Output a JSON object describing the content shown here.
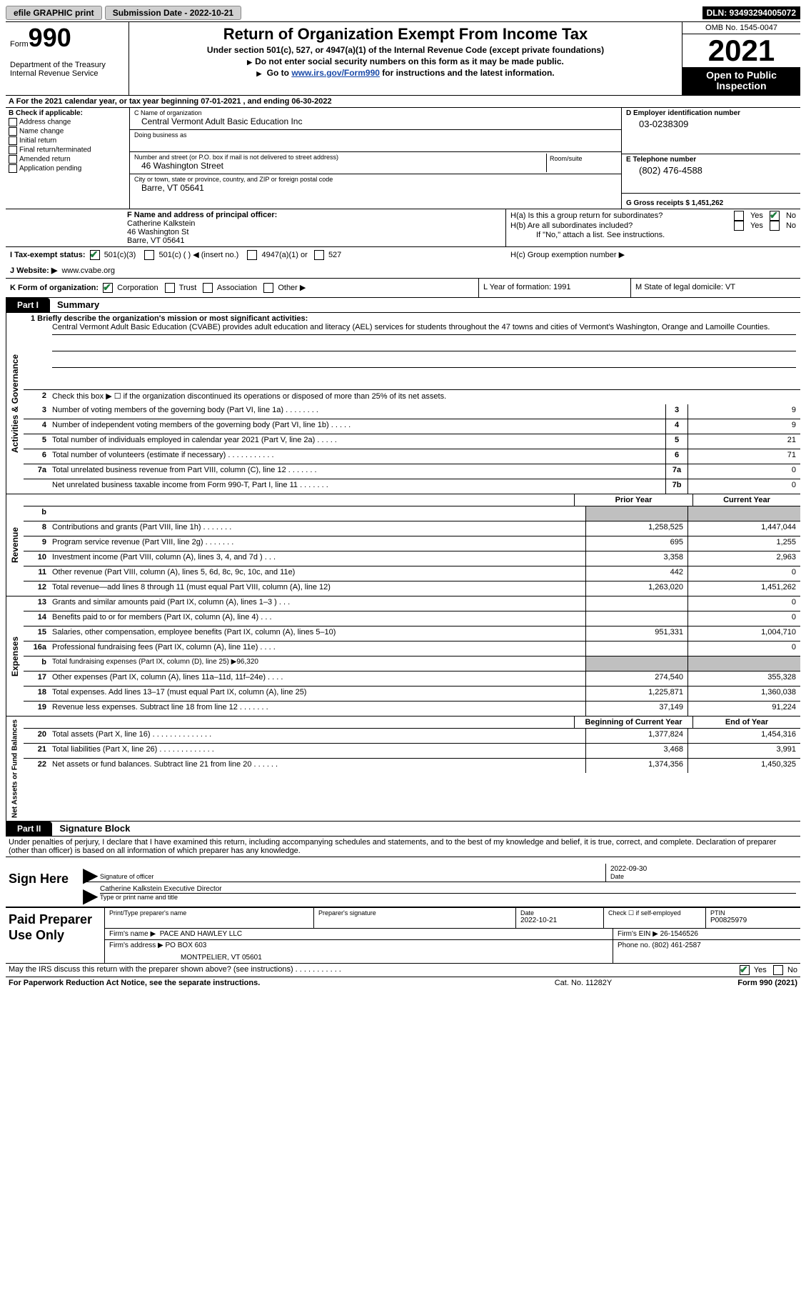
{
  "topbar": {
    "efile": "efile GRAPHIC print",
    "submission": "Submission Date - 2022-10-21",
    "dln": "DLN: 93493294005072"
  },
  "header": {
    "form_word": "Form",
    "form_num": "990",
    "dept": "Department of the Treasury",
    "irs": "Internal Revenue Service",
    "title": "Return of Organization Exempt From Income Tax",
    "sub": "Under section 501(c), 527, or 4947(a)(1) of the Internal Revenue Code (except private foundations)",
    "line1": "Do not enter social security numbers on this form as it may be made public.",
    "line2_pre": "Go to ",
    "line2_link": "www.irs.gov/Form990",
    "line2_post": " for instructions and the latest information.",
    "omb": "OMB No. 1545-0047",
    "year": "2021",
    "otp": "Open to Public Inspection"
  },
  "lineA": "For the 2021 calendar year, or tax year beginning 07-01-2021   , and ending 06-30-2022",
  "B": {
    "title": "B Check if applicable:",
    "items": [
      "Address change",
      "Name change",
      "Initial return",
      "Final return/terminated",
      "Amended return",
      "Application pending"
    ]
  },
  "C": {
    "name_lbl": "C Name of organization",
    "name": "Central Vermont Adult Basic Education Inc",
    "dba_lbl": "Doing business as",
    "street_lbl": "Number and street (or P.O. box if mail is not delivered to street address)",
    "room_lbl": "Room/suite",
    "street": "46 Washington Street",
    "city_lbl": "City or town, state or province, country, and ZIP or foreign postal code",
    "city": "Barre, VT  05641"
  },
  "D": {
    "lbl": "D Employer identification number",
    "val": "03-0238309"
  },
  "E": {
    "lbl": "E Telephone number",
    "val": "(802) 476-4588"
  },
  "G": "G Gross receipts $ 1,451,262",
  "F": {
    "lbl": "F  Name and address of principal officer:",
    "name": "Catherine Kalkstein",
    "street": "46 Washington St",
    "city": "Barre, VT  05641"
  },
  "H": {
    "a": "H(a)  Is this a group return for subordinates?",
    "b": "H(b)  Are all subordinates included?",
    "b_note": "If \"No,\" attach a list. See instructions.",
    "c": "H(c)  Group exemption number ▶",
    "yes": "Yes",
    "no": "No"
  },
  "I": {
    "lbl": "I   Tax-exempt status:",
    "opts": [
      "501(c)(3)",
      "501(c) (  ) ◀ (insert no.)",
      "4947(a)(1) or",
      "527"
    ]
  },
  "J": {
    "lbl": "J   Website: ▶",
    "val": "www.cvabe.org"
  },
  "K": {
    "lbl": "K Form of organization:",
    "opts": [
      "Corporation",
      "Trust",
      "Association",
      "Other ▶"
    ]
  },
  "L": "L Year of formation: 1991",
  "M": "M State of legal domicile: VT",
  "part1": {
    "tab": "Part I",
    "title": "Summary"
  },
  "mission": {
    "q1": "1   Briefly describe the organization's mission or most significant activities:",
    "text": "Central Vermont Adult Basic Education (CVABE) provides adult education and literacy (AEL) services for students throughout the 47 towns and cities of Vermont's Washington, Orange and Lamoille Counties."
  },
  "summary": {
    "q2": "Check this box ▶ ☐  if the organization discontinued its operations or disposed of more than 25% of its net assets.",
    "rows": [
      {
        "n": "3",
        "t": "Number of voting members of the governing body (Part VI, line 1a)   .    .    .    .    .    .    .    .",
        "bn": "3",
        "v": "9"
      },
      {
        "n": "4",
        "t": "Number of independent voting members of the governing body (Part VI, line 1b)   .    .    .    .    .",
        "bn": "4",
        "v": "9"
      },
      {
        "n": "5",
        "t": "Total number of individuals employed in calendar year 2021 (Part V, line 2a)   .    .    .    .    .",
        "bn": "5",
        "v": "21"
      },
      {
        "n": "6",
        "t": "Total number of volunteers (estimate if necessary)    .    .    .    .    .    .    .    .    .    .    .",
        "bn": "6",
        "v": "71"
      },
      {
        "n": "7a",
        "t": "Total unrelated business revenue from Part VIII, column (C), line 12   .    .    .    .    .    .    .",
        "bn": "7a",
        "v": "0"
      },
      {
        "n": "",
        "t": "Net unrelated business taxable income from Form 990-T, Part I, line 11   .    .    .    .    .    .    .",
        "bn": "7b",
        "v": "0"
      }
    ]
  },
  "pycy": {
    "prior": "Prior Year",
    "current": "Current Year"
  },
  "revenue": [
    {
      "n": "b",
      "t": "",
      "p": "",
      "c": "",
      "gray": true
    },
    {
      "n": "8",
      "t": "Contributions and grants (Part VIII, line 1h)    .    .    .    .    .    .    .",
      "p": "1,258,525",
      "c": "1,447,044"
    },
    {
      "n": "9",
      "t": "Program service revenue (Part VIII, line 2g)    .    .    .    .    .    .    .",
      "p": "695",
      "c": "1,255"
    },
    {
      "n": "10",
      "t": "Investment income (Part VIII, column (A), lines 3, 4, and 7d )   .    .    .",
      "p": "3,358",
      "c": "2,963"
    },
    {
      "n": "11",
      "t": "Other revenue (Part VIII, column (A), lines 5, 6d, 8c, 9c, 10c, and 11e)",
      "p": "442",
      "c": "0"
    },
    {
      "n": "12",
      "t": "Total revenue—add lines 8 through 11 (must equal Part VIII, column (A), line 12)",
      "p": "1,263,020",
      "c": "1,451,262"
    }
  ],
  "expenses": [
    {
      "n": "13",
      "t": "Grants and similar amounts paid (Part IX, column (A), lines 1–3 )   .    .    .",
      "p": "",
      "c": "0"
    },
    {
      "n": "14",
      "t": "Benefits paid to or for members (Part IX, column (A), line 4)   .    .    .",
      "p": "",
      "c": "0"
    },
    {
      "n": "15",
      "t": "Salaries, other compensation, employee benefits (Part IX, column (A), lines 5–10)",
      "p": "951,331",
      "c": "1,004,710"
    },
    {
      "n": "16a",
      "t": "Professional fundraising fees (Part IX, column (A), line 11e)   .    .    .    .",
      "p": "",
      "c": "0"
    },
    {
      "n": "b",
      "t": "Total fundraising expenses (Part IX, column (D), line 25) ▶96,320",
      "p": "GRAY",
      "c": "GRAY",
      "special": true
    },
    {
      "n": "17",
      "t": "Other expenses (Part IX, column (A), lines 11a–11d, 11f–24e)   .    .    .    .",
      "p": "274,540",
      "c": "355,328"
    },
    {
      "n": "18",
      "t": "Total expenses. Add lines 13–17 (must equal Part IX, column (A), line 25)",
      "p": "1,225,871",
      "c": "1,360,038"
    },
    {
      "n": "19",
      "t": "Revenue less expenses. Subtract line 18 from line 12   .    .    .    .    .    .    .",
      "p": "37,149",
      "c": "91,224"
    }
  ],
  "bece": {
    "begin": "Beginning of Current Year",
    "end": "End of Year"
  },
  "netassets": [
    {
      "n": "20",
      "t": "Total assets (Part X, line 16)   .    .    .    .    .    .    .    .    .    .    .    .    .    .",
      "p": "1,377,824",
      "c": "1,454,316"
    },
    {
      "n": "21",
      "t": "Total liabilities (Part X, line 26)   .    .    .    .    .    .    .    .    .    .    .    .    .",
      "p": "3,468",
      "c": "3,991"
    },
    {
      "n": "22",
      "t": "Net assets or fund balances. Subtract line 21 from line 20   .    .    .    .    .    .",
      "p": "1,374,356",
      "c": "1,450,325"
    }
  ],
  "sidebars": {
    "ag": "Activities & Governance",
    "rev": "Revenue",
    "exp": "Expenses",
    "na": "Net Assets or\nFund Balances"
  },
  "part2": {
    "tab": "Part II",
    "title": "Signature Block"
  },
  "declaration": "Under penalties of perjury, I declare that I have examined this return, including accompanying schedules and statements, and to the best of my knowledge and belief, it is true, correct, and complete. Declaration of preparer (other than officer) is based on all information of which preparer has any knowledge.",
  "sign": {
    "lbl": "Sign Here",
    "sig_officer": "Signature of officer",
    "date": "Date",
    "date_val": "2022-09-30",
    "name": "Catherine Kalkstein  Executive Director",
    "type": "Type or print name and title"
  },
  "paid": {
    "lbl": "Paid Preparer Use Only",
    "print_name": "Print/Type preparer's name",
    "sig": "Preparer's signature",
    "date_lbl": "Date",
    "date_val": "2022-10-21",
    "check_lbl": "Check ☐ if self-employed",
    "ptin_lbl": "PTIN",
    "ptin_val": "P00825979",
    "firm_name_lbl": "Firm's name    ▶",
    "firm_name": "PACE AND HAWLEY LLC",
    "firm_ein_lbl": "Firm's EIN ▶",
    "firm_ein": "26-1546526",
    "firm_addr_lbl": "Firm's address ▶",
    "firm_addr1": "PO BOX 603",
    "firm_addr2": "MONTPELIER, VT  05601",
    "phone_lbl": "Phone no.",
    "phone": "(802) 461-2587"
  },
  "discuss": "May the IRS discuss this return with the preparer shown above? (see instructions)    .    .    .    .    .    .    .    .    .    .    .",
  "footer": {
    "pra": "For Paperwork Reduction Act Notice, see the separate instructions.",
    "cat": "Cat. No. 11282Y",
    "form": "Form 990 (2021)"
  }
}
